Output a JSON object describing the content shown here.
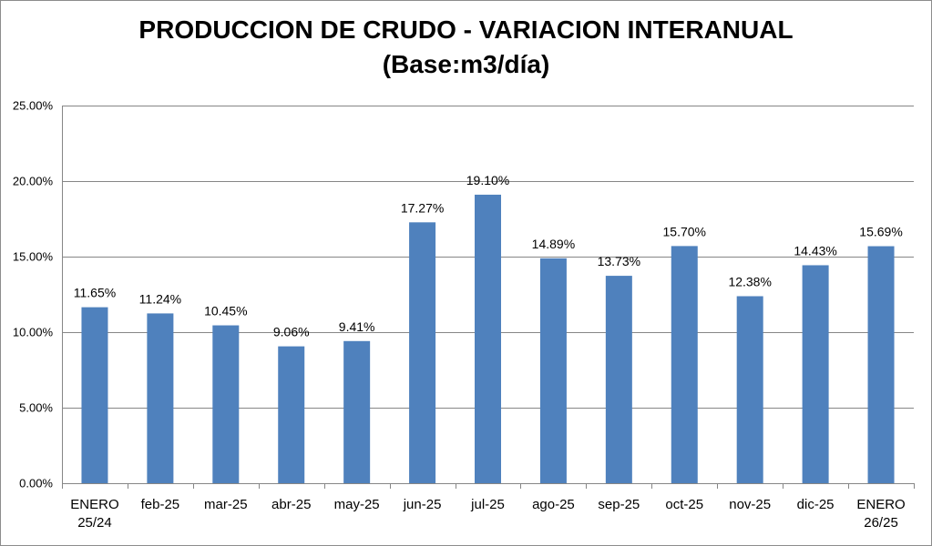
{
  "chart_data": {
    "type": "bar",
    "title": "PRODUCCION DE CRUDO - VARIACION INTERANUAL",
    "subtitle": "(Base:m3/día)",
    "xlabel": "",
    "ylabel": "",
    "categories": [
      [
        "ENERO",
        "25/24"
      ],
      [
        "feb-25"
      ],
      [
        "mar-25"
      ],
      [
        "abr-25"
      ],
      [
        "may-25"
      ],
      [
        "jun-25"
      ],
      [
        "jul-25"
      ],
      [
        "ago-25"
      ],
      [
        "sep-25"
      ],
      [
        "oct-25"
      ],
      [
        "nov-25"
      ],
      [
        "dic-25"
      ],
      [
        "ENERO",
        "26/25"
      ]
    ],
    "values": [
      11.65,
      11.24,
      10.45,
      9.06,
      9.41,
      17.27,
      19.1,
      14.89,
      13.73,
      15.7,
      12.38,
      14.43,
      15.69
    ],
    "data_labels": [
      "11.65%",
      "11.24%",
      "10.45%",
      "9.06%",
      "9.41%",
      "17.27%",
      "19.10%",
      "14.89%",
      "13.73%",
      "15.70%",
      "12.38%",
      "14.43%",
      "15.69%"
    ],
    "ylim": [
      0,
      25
    ],
    "yticks": [
      0,
      5,
      10,
      15,
      20,
      25
    ],
    "ytick_labels": [
      "0.00%",
      "5.00%",
      "10.00%",
      "15.00%",
      "20.00%",
      "25.00%"
    ],
    "grid": true,
    "legend": "none",
    "colors": {
      "bar": "#4f81bd",
      "grid": "#868686",
      "axis": "#868686"
    }
  }
}
